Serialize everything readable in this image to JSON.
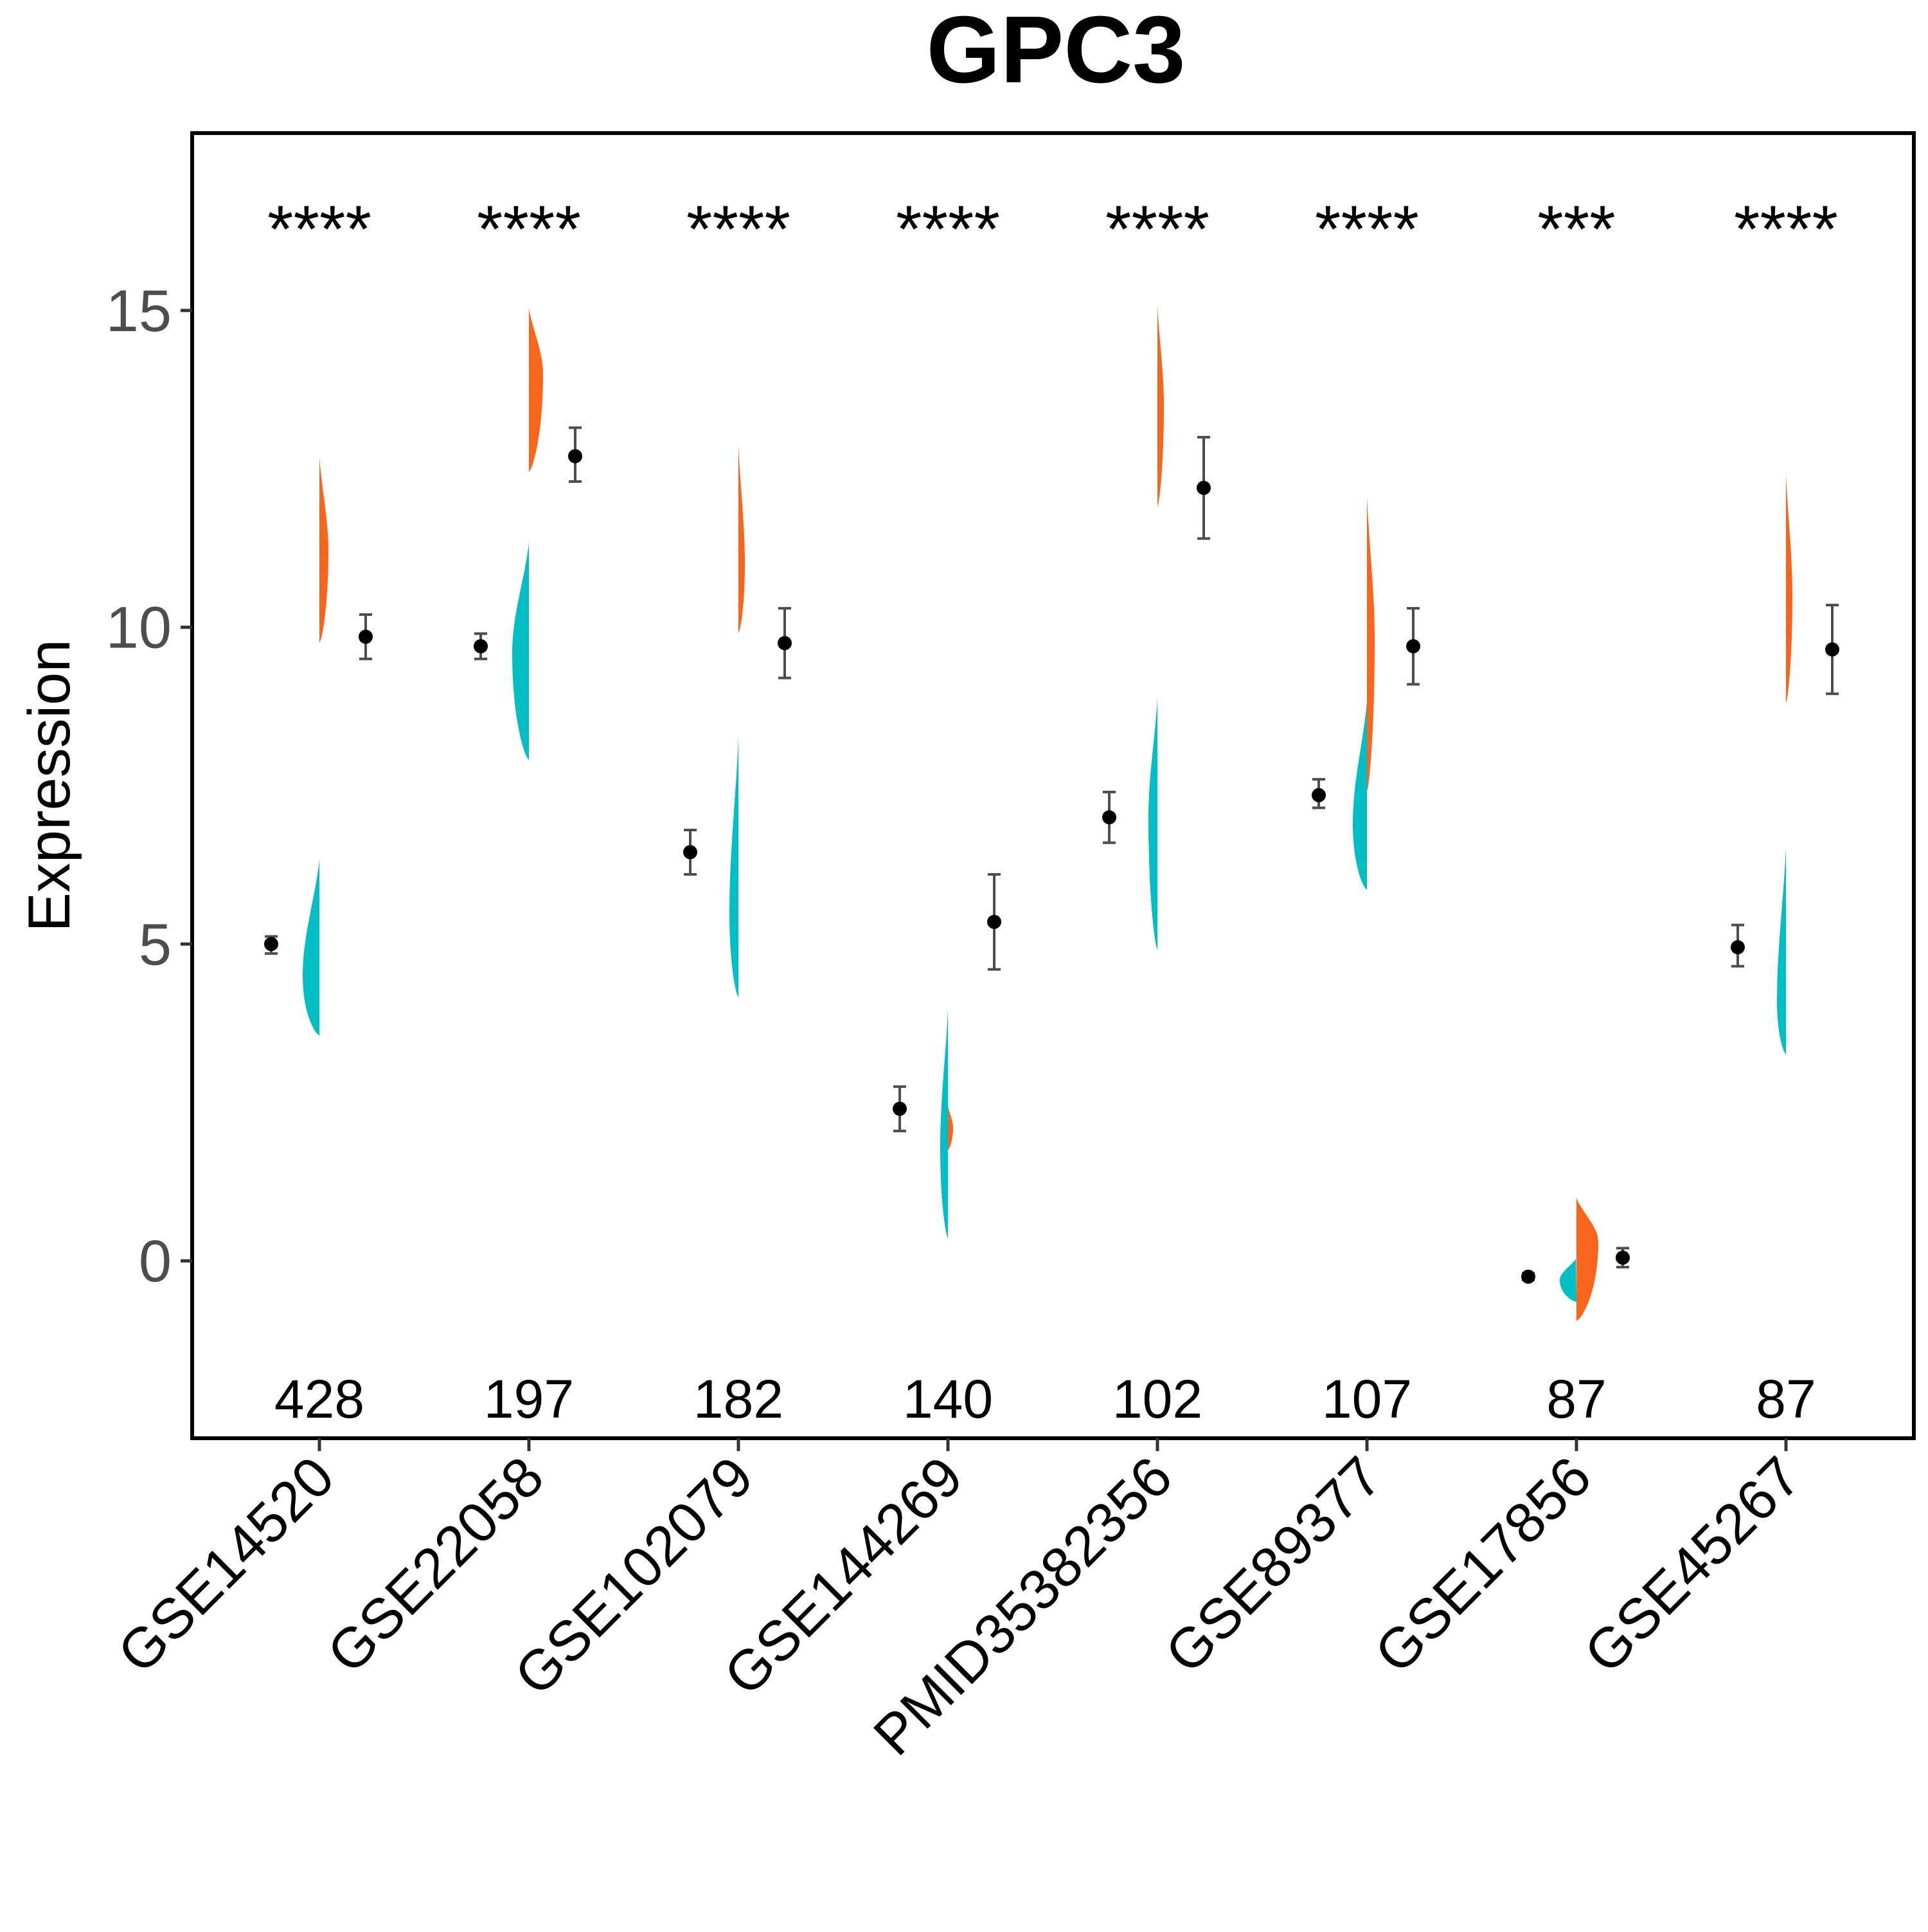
{
  "chart_data": {
    "type": "split-violin",
    "title": "GPC3",
    "ylabel": "Expression",
    "xlabel": "",
    "ylim": [
      -2.8,
      17.8
    ],
    "yticks": [
      0,
      5,
      10,
      15
    ],
    "legend": "none",
    "grid": false,
    "colors": {
      "normal": "#00BFC4",
      "tumor": "#F8651C",
      "point": "#000000",
      "errorbar": "#4d4d4d"
    },
    "groups": [
      {
        "name": "GSE14520",
        "significance": "****",
        "n": "428",
        "normal": {
          "mean": 5.0,
          "lo": 4.85,
          "hi": 5.12,
          "violin_min": 3.55,
          "violin_max": 6.35,
          "peak": 4.5
        },
        "tumor": {
          "mean": 9.85,
          "lo": 9.5,
          "hi": 10.2,
          "violin_min": 9.75,
          "violin_max": 12.7,
          "peak": 11.2
        }
      },
      {
        "name": "GSE22058",
        "significance": "****",
        "n": "197",
        "normal": {
          "mean": 9.7,
          "lo": 9.5,
          "hi": 9.9,
          "violin_min": 7.9,
          "violin_max": 11.35,
          "peak": 9.6
        },
        "tumor": {
          "mean": 12.7,
          "lo": 12.3,
          "hi": 13.15,
          "violin_min": 12.45,
          "violin_max": 15.05,
          "peak": 14.0
        }
      },
      {
        "name": "GSE102079",
        "significance": "****",
        "n": "182",
        "normal": {
          "mean": 6.45,
          "lo": 6.1,
          "hi": 6.8,
          "violin_min": 4.15,
          "violin_max": 8.3,
          "peak": 5.5
        },
        "tumor": {
          "mean": 9.75,
          "lo": 9.2,
          "hi": 10.3,
          "violin_min": 9.9,
          "violin_max": 12.9,
          "peak": 11.0
        }
      },
      {
        "name": "GSE144269",
        "significance": "****",
        "n": "140",
        "normal": {
          "mean": 2.4,
          "lo": 2.05,
          "hi": 2.75,
          "violin_min": 0.35,
          "violin_max": 4.0,
          "peak": 1.8
        },
        "tumor": {
          "mean": 5.35,
          "lo": 4.6,
          "hi": 6.1,
          "violin_min": 1.75,
          "violin_max": 2.45,
          "peak": 2.1
        }
      },
      {
        "name": "PMID35382356",
        "significance": "****",
        "n": "102",
        "normal": {
          "mean": 7.0,
          "lo": 6.6,
          "hi": 7.4,
          "violin_min": 4.9,
          "violin_max": 8.9,
          "peak": 7.0
        },
        "tumor": {
          "mean": 12.2,
          "lo": 11.4,
          "hi": 13.0,
          "violin_min": 11.9,
          "violin_max": 15.1,
          "peak": 13.5
        }
      },
      {
        "name": "GSE89377",
        "significance": "****",
        "n": "107",
        "normal": {
          "mean": 7.35,
          "lo": 7.15,
          "hi": 7.6,
          "violin_min": 5.85,
          "violin_max": 8.85,
          "peak": 6.9
        },
        "tumor": {
          "mean": 9.7,
          "lo": 9.1,
          "hi": 10.3,
          "violin_min": 7.4,
          "violin_max": 12.1,
          "peak": 9.8
        }
      },
      {
        "name": "GSE17856",
        "significance": "***",
        "n": "87",
        "normal": {
          "mean": -0.25,
          "lo": -0.3,
          "hi": -0.2,
          "violin_min": -0.65,
          "violin_max": 0.05,
          "peak": -0.3
        },
        "tumor": {
          "mean": 0.05,
          "lo": -0.1,
          "hi": 0.2,
          "violin_min": -0.95,
          "violin_max": 1.0,
          "peak": 0.3
        }
      },
      {
        "name": "GSE45267",
        "significance": "****",
        "n": "87",
        "normal": {
          "mean": 4.95,
          "lo": 4.65,
          "hi": 5.3,
          "violin_min": 3.25,
          "violin_max": 6.55,
          "peak": 4.1
        },
        "tumor": {
          "mean": 9.65,
          "lo": 8.95,
          "hi": 10.35,
          "violin_min": 8.8,
          "violin_max": 12.45,
          "peak": 10.5
        }
      }
    ]
  }
}
